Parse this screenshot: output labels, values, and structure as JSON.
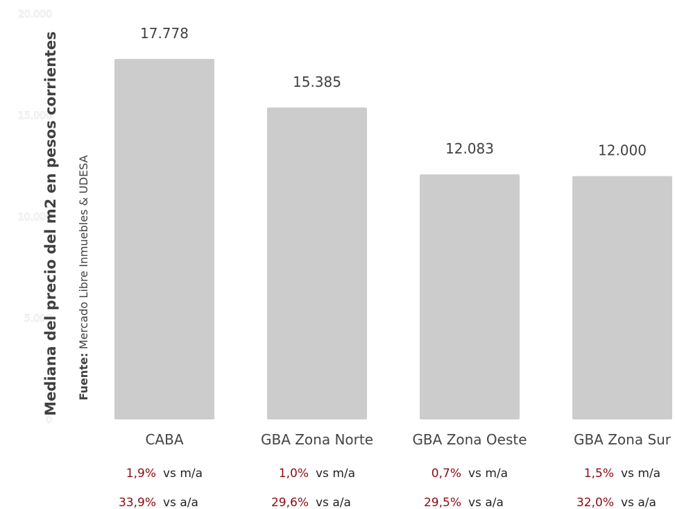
{
  "chart_data": {
    "type": "bar",
    "categories": [
      "CABA",
      "GBA Zona Norte",
      "GBA Zona Oeste",
      "GBA Zona Sur"
    ],
    "values": [
      17778,
      15385,
      12083,
      12000
    ],
    "value_labels": [
      "17.778",
      "15.385",
      "12.083",
      "12.000"
    ],
    "ylabel": "Mediana del precio del m2 en pesos corrientes",
    "ylim": [
      0,
      20000
    ],
    "yticks": [
      0,
      5000,
      10000,
      15000,
      20000
    ],
    "ytick_labels": [
      "0",
      "5.000",
      "10.000",
      "15.000",
      "20.000"
    ],
    "grid": false,
    "bar_color": "#cccccc",
    "source_bold": "Fuente:",
    "source_text": "Mercado Libre Inmuebles & UDESA",
    "changes": [
      {
        "mom": "1,9%",
        "mom_label": "vs m/a",
        "yoy": "33,9%",
        "yoy_label": "vs a/a"
      },
      {
        "mom": "1,0%",
        "mom_label": "vs m/a",
        "yoy": "29,6%",
        "yoy_label": "vs a/a"
      },
      {
        "mom": "0,7%",
        "mom_label": "vs m/a",
        "yoy": "29,5%",
        "yoy_label": "vs a/a"
      },
      {
        "mom": "1,5%",
        "mom_label": "vs m/a",
        "yoy": "32,0%",
        "yoy_label": "vs a/a"
      }
    ],
    "change_color": "#8b0a12"
  }
}
